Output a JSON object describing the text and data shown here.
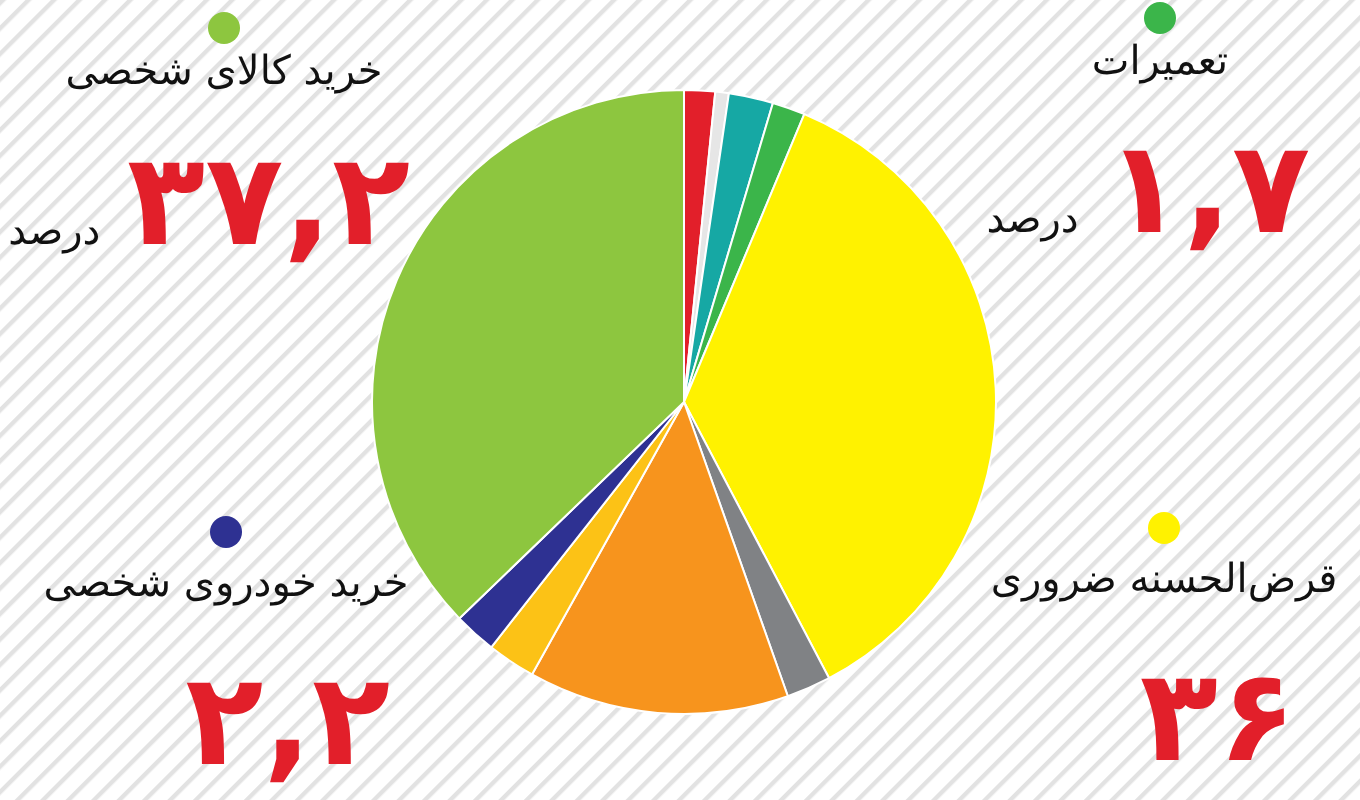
{
  "chart_data": {
    "type": "pie",
    "categories": [
      null,
      null,
      null,
      "تعمیرات",
      "قرض‌الحسنه ضروری",
      null,
      null,
      null,
      "خرید خودروی شخصی",
      "خرید کالای شخصی"
    ],
    "values": [
      1.6,
      0.7,
      2.3,
      1.7,
      36,
      2.3,
      13.5,
      2.5,
      2.2,
      37.2
    ],
    "colors": [
      "#e21f2a",
      "#e6e6e6",
      "#16a8a4",
      "#3bb54a",
      "#fff200",
      "#808285",
      "#f7941d",
      "#fcc216",
      "#2e3192",
      "#8dc63f"
    ],
    "value_labels": [
      null,
      null,
      null,
      "۱,۷ درصد",
      "۳۶",
      null,
      null,
      null,
      "۲,۲",
      "۳۷,۲ درصد"
    ],
    "legend": "top right"
  }
}
